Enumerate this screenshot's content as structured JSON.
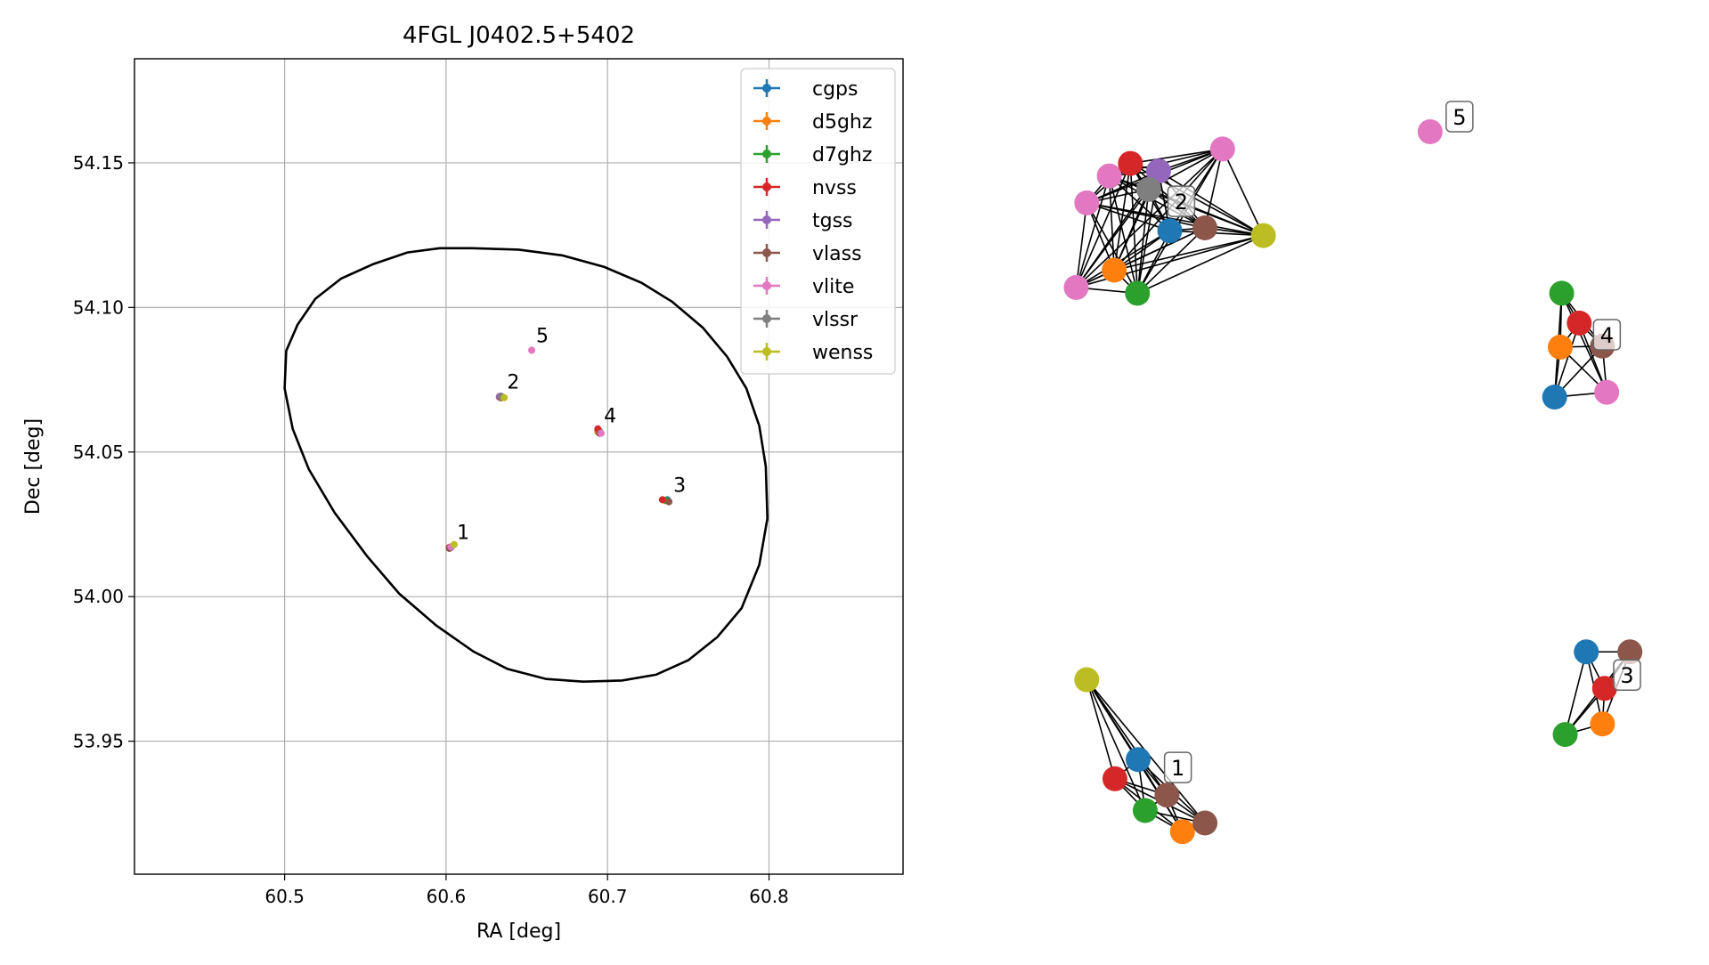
{
  "chart_data": [
    {
      "type": "scatter",
      "title": "4FGL J0402.5+5402",
      "xlabel": "RA [deg]",
      "ylabel": "Dec [deg]",
      "xlim": [
        60.407,
        60.883
      ],
      "ylim": [
        53.904,
        54.186
      ],
      "xticks": [
        60.5,
        60.6,
        60.7,
        60.8
      ],
      "yticks": [
        53.95,
        54.0,
        54.05,
        54.1,
        54.15
      ],
      "xtick_labels": [
        "60.5",
        "60.6",
        "60.7",
        "60.8"
      ],
      "ytick_labels": [
        "53.95",
        "54.00",
        "54.05",
        "54.10",
        "54.15"
      ],
      "grid": true,
      "legend_position": "top-right",
      "ellipse": {
        "points": [
          [
            60.616,
            54.1205
          ],
          [
            60.645,
            54.12
          ],
          [
            60.672,
            54.118
          ],
          [
            60.698,
            54.114
          ],
          [
            60.721,
            54.1085
          ],
          [
            60.74,
            54.102
          ],
          [
            60.759,
            54.093
          ],
          [
            60.774,
            54.083
          ],
          [
            60.786,
            54.072
          ],
          [
            60.794,
            54.059
          ],
          [
            60.798,
            54.045
          ],
          [
            60.799,
            54.027
          ],
          [
            60.794,
            54.011
          ],
          [
            60.783,
            53.996
          ],
          [
            60.768,
            53.986
          ],
          [
            60.75,
            53.978
          ],
          [
            60.73,
            53.973
          ],
          [
            60.709,
            53.971
          ],
          [
            60.685,
            53.9706
          ],
          [
            60.662,
            53.9715
          ],
          [
            60.638,
            53.975
          ],
          [
            60.617,
            53.981
          ],
          [
            60.594,
            53.99
          ],
          [
            60.571,
            54.001
          ],
          [
            60.551,
            54.014
          ],
          [
            60.531,
            54.029
          ],
          [
            60.515,
            54.044
          ],
          [
            60.505,
            54.058
          ],
          [
            60.5,
            54.072
          ],
          [
            60.501,
            54.085
          ],
          [
            60.508,
            54.094
          ],
          [
            60.519,
            54.103
          ],
          [
            60.535,
            54.11
          ],
          [
            60.555,
            54.115
          ],
          [
            60.576,
            54.119
          ],
          [
            60.596,
            54.1205
          ],
          [
            60.616,
            54.1205
          ]
        ]
      },
      "series": [
        {
          "name": "cgps",
          "color": "#1f77b4",
          "points": [
            [
              60.603,
              54.017
            ],
            [
              60.634,
              54.069
            ],
            [
              60.737,
              54.0335
            ],
            [
              60.694,
              54.0575
            ]
          ]
        },
        {
          "name": "d5ghz",
          "color": "#ff7f0e",
          "points": [
            [
              60.602,
              54.0168
            ],
            [
              60.634,
              54.0688
            ],
            [
              60.736,
              54.0332
            ],
            [
              60.694,
              54.057
            ]
          ]
        },
        {
          "name": "d7ghz",
          "color": "#2ca02c",
          "points": [
            [
              60.602,
              54.0169
            ],
            [
              60.634,
              54.0689
            ],
            [
              60.736,
              54.0333
            ],
            [
              60.695,
              54.0572
            ]
          ]
        },
        {
          "name": "nvss",
          "color": "#d62728",
          "points": [
            [
              60.602,
              54.017
            ],
            [
              60.633,
              54.069
            ],
            [
              60.734,
              54.0335
            ],
            [
              60.694,
              54.058
            ]
          ]
        },
        {
          "name": "tgss",
          "color": "#9467bd",
          "points": [
            [
              60.633,
              54.0692
            ]
          ]
        },
        {
          "name": "vlass",
          "color": "#8c564b",
          "points": [
            [
              60.602,
              54.0167
            ],
            [
              60.634,
              54.0688
            ],
            [
              60.738,
              54.0328
            ],
            [
              60.695,
              54.0565
            ]
          ]
        },
        {
          "name": "vlite",
          "color": "#e377c2",
          "points": [
            [
              60.603,
              54.0172
            ],
            [
              60.634,
              54.0692
            ],
            [
              60.653,
              54.0852
            ],
            [
              60.696,
              54.0565
            ]
          ]
        },
        {
          "name": "vlssr",
          "color": "#7f7f7f",
          "points": [
            [
              60.634,
              54.0693
            ]
          ]
        },
        {
          "name": "wenss",
          "color": "#bcbd22",
          "points": [
            [
              60.605,
              54.018
            ],
            [
              60.636,
              54.0688
            ]
          ]
        }
      ],
      "annotations": [
        {
          "text": "1",
          "x": 60.604,
          "y": 54.0172
        },
        {
          "text": "2",
          "x": 60.635,
          "y": 54.0692
        },
        {
          "text": "3",
          "x": 60.738,
          "y": 54.0335
        },
        {
          "text": "4",
          "x": 60.695,
          "y": 54.0575
        },
        {
          "text": "5",
          "x": 60.653,
          "y": 54.0852
        }
      ]
    },
    {
      "type": "network-graph",
      "clusters": [
        {
          "label": "2",
          "nodes": [
            {
              "color": "#e377c2",
              "x": 0.112,
              "y": 0.299
            },
            {
              "color": "#e377c2",
              "x": 0.127,
              "y": 0.211
            },
            {
              "color": "#e377c2",
              "x": 0.159,
              "y": 0.183
            },
            {
              "color": "#d62728",
              "x": 0.189,
              "y": 0.17
            },
            {
              "color": "#9467bd",
              "x": 0.229,
              "y": 0.178
            },
            {
              "color": "#7f7f7f",
              "x": 0.215,
              "y": 0.197
            },
            {
              "color": "#1f77b4",
              "x": 0.245,
              "y": 0.24
            },
            {
              "color": "#8c564b",
              "x": 0.295,
              "y": 0.237
            },
            {
              "color": "#ff7f0e",
              "x": 0.166,
              "y": 0.281
            },
            {
              "color": "#2ca02c",
              "x": 0.199,
              "y": 0.305
            },
            {
              "color": "#e377c2",
              "x": 0.32,
              "y": 0.155
            },
            {
              "color": "#bcbd22",
              "x": 0.378,
              "y": 0.245
            }
          ]
        },
        {
          "label": "5",
          "nodes": [
            {
              "color": "#e377c2",
              "x": 0.615,
              "y": 0.137
            }
          ]
        },
        {
          "label": "4",
          "nodes": [
            {
              "color": "#2ca02c",
              "x": 0.802,
              "y": 0.305
            },
            {
              "color": "#d62728",
              "x": 0.827,
              "y": 0.336
            },
            {
              "color": "#ff7f0e",
              "x": 0.8,
              "y": 0.361
            },
            {
              "color": "#8c564b",
              "x": 0.86,
              "y": 0.36
            },
            {
              "color": "#1f77b4",
              "x": 0.792,
              "y": 0.413
            },
            {
              "color": "#e377c2",
              "x": 0.866,
              "y": 0.408
            }
          ]
        },
        {
          "label": "1",
          "nodes": [
            {
              "color": "#bcbd22",
              "x": 0.127,
              "y": 0.707
            },
            {
              "color": "#1f77b4",
              "x": 0.2,
              "y": 0.79
            },
            {
              "color": "#d62728",
              "x": 0.167,
              "y": 0.81
            },
            {
              "color": "#8c564b",
              "x": 0.241,
              "y": 0.827
            },
            {
              "color": "#2ca02c",
              "x": 0.21,
              "y": 0.843
            },
            {
              "color": "#ff7f0e",
              "x": 0.263,
              "y": 0.865
            },
            {
              "color": "#8c564b",
              "x": 0.295,
              "y": 0.856
            }
          ]
        },
        {
          "label": "3",
          "nodes": [
            {
              "color": "#1f77b4",
              "x": 0.837,
              "y": 0.678
            },
            {
              "color": "#8c564b",
              "x": 0.899,
              "y": 0.678
            },
            {
              "color": "#d62728",
              "x": 0.863,
              "y": 0.716
            },
            {
              "color": "#ff7f0e",
              "x": 0.86,
              "y": 0.753
            },
            {
              "color": "#2ca02c",
              "x": 0.807,
              "y": 0.764
            }
          ]
        }
      ]
    }
  ]
}
